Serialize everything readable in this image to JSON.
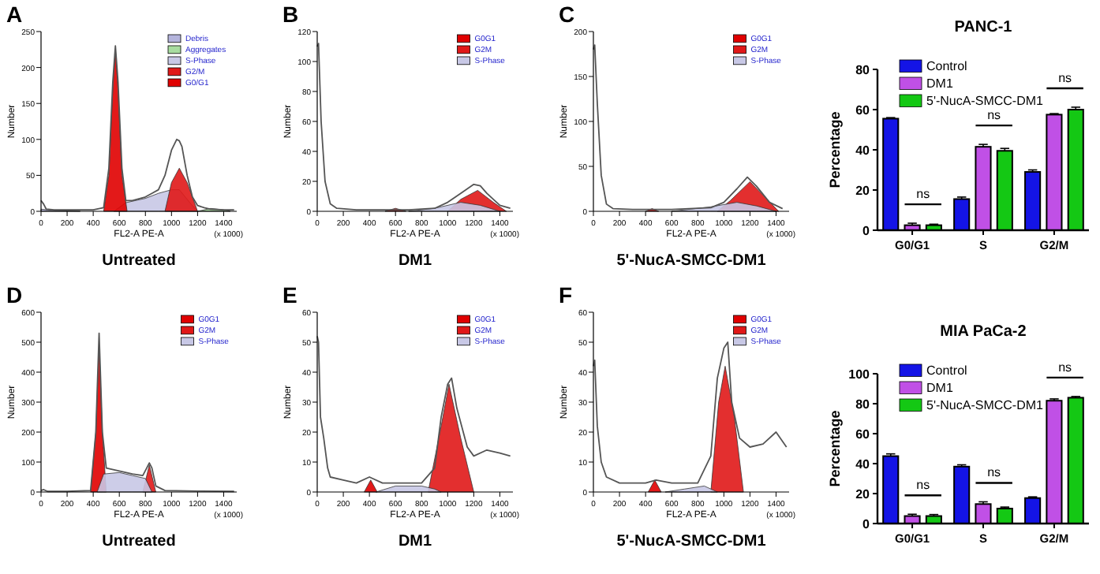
{
  "chart_data": [
    {
      "type": "area",
      "title": "A",
      "xlabel": "FL2-A PE-A",
      "ylabel": "Number",
      "xlim": [
        0,
        1500
      ],
      "xticks": [
        0,
        200,
        400,
        600,
        800,
        1000,
        1200,
        1400
      ],
      "ylim": [
        0,
        250
      ],
      "yticks": [
        0,
        50,
        100,
        150,
        200,
        250
      ],
      "legend": "top right",
      "annotations": [
        "(x 1000)",
        "Untreated"
      ],
      "series": [
        {
          "name": "Debris",
          "color": "#b4b4dc",
          "type": "area",
          "x": [
            0,
            50,
            100,
            300
          ],
          "values": [
            3,
            2,
            1,
            0
          ]
        },
        {
          "name": "Aggregates",
          "color": "#a8dca0",
          "type": "area",
          "x": [
            1200,
            1300,
            1400,
            1450
          ],
          "values": [
            0,
            4,
            2,
            0
          ]
        },
        {
          "name": "S-Phase",
          "color": "#c8c8e6",
          "type": "area",
          "x": [
            560,
            650,
            800,
            900,
            1000,
            1060,
            1150,
            1200
          ],
          "values": [
            0,
            12,
            18,
            25,
            30,
            30,
            10,
            0
          ]
        },
        {
          "name": "G2/M",
          "color": "#e01818",
          "type": "area",
          "x": [
            950,
            1000,
            1060,
            1120,
            1200
          ],
          "values": [
            0,
            40,
            60,
            40,
            0
          ]
        },
        {
          "name": "G0/G1",
          "color": "#e00000",
          "type": "area",
          "x": [
            480,
            520,
            550,
            570,
            590,
            620,
            660
          ],
          "values": [
            0,
            50,
            170,
            225,
            170,
            50,
            0
          ]
        },
        {
          "color": "#555555",
          "type": "line",
          "x": [
            0,
            20,
            40,
            100,
            200,
            300,
            400,
            480,
            520,
            550,
            570,
            590,
            620,
            650,
            700,
            800,
            850,
            900,
            950,
            1000,
            1040,
            1060,
            1080,
            1120,
            1160,
            1200,
            1250,
            1300,
            1400,
            1480
          ],
          "values": [
            15,
            10,
            3,
            2,
            2,
            2,
            2,
            5,
            60,
            180,
            230,
            180,
            60,
            15,
            15,
            20,
            25,
            30,
            50,
            85,
            100,
            98,
            90,
            50,
            20,
            8,
            5,
            3,
            2,
            2
          ]
        }
      ]
    },
    {
      "type": "area",
      "title": "B",
      "xlabel": "FL2-A PE-A",
      "ylabel": "Number",
      "xlim": [
        0,
        1500
      ],
      "xticks": [
        0,
        200,
        400,
        600,
        800,
        1000,
        1200,
        1400
      ],
      "ylim": [
        0,
        120
      ],
      "yticks": [
        0,
        20,
        40,
        60,
        80,
        100,
        120
      ],
      "legend": "top right",
      "annotations": [
        "(x 1000)",
        "DM1"
      ],
      "series": [
        {
          "name": "G0G1",
          "color": "#e00000",
          "type": "area",
          "x": [
            520,
            600,
            680
          ],
          "values": [
            0,
            2,
            0
          ]
        },
        {
          "name": "G2M",
          "color": "#e01818",
          "type": "area",
          "x": [
            1000,
            1100,
            1230,
            1350,
            1450
          ],
          "values": [
            0,
            8,
            14,
            6,
            0
          ]
        },
        {
          "name": "S-Phase",
          "color": "#c8c8e6",
          "type": "area",
          "x": [
            700,
            900,
            1100,
            1250,
            1400
          ],
          "values": [
            0,
            2,
            6,
            4,
            0
          ]
        },
        {
          "color": "#555555",
          "type": "line",
          "x": [
            0,
            10,
            30,
            60,
            100,
            150,
            300,
            500,
            700,
            900,
            1000,
            1100,
            1200,
            1250,
            1300,
            1400,
            1480
          ],
          "values": [
            110,
            112,
            60,
            20,
            5,
            2,
            1,
            1,
            1,
            2,
            6,
            12,
            18,
            17,
            12,
            4,
            2
          ]
        }
      ]
    },
    {
      "type": "area",
      "title": "C",
      "xlabel": "FL2-A PE-A",
      "ylabel": "Number",
      "xlim": [
        0,
        1500
      ],
      "xticks": [
        0,
        200,
        400,
        600,
        800,
        1000,
        1200,
        1400
      ],
      "ylim": [
        0,
        200
      ],
      "yticks": [
        0,
        50,
        100,
        150,
        200
      ],
      "legend": "top right",
      "annotations": [
        "(x 1000)",
        "5'-NucA-SMCC-DM1"
      ],
      "series": [
        {
          "name": "G0G1",
          "color": "#e00000",
          "type": "area",
          "x": [
            400,
            450,
            500
          ],
          "values": [
            0,
            3,
            0
          ]
        },
        {
          "name": "G2M",
          "color": "#e01818",
          "type": "area",
          "x": [
            950,
            1050,
            1200,
            1300,
            1420
          ],
          "values": [
            0,
            12,
            33,
            18,
            0
          ]
        },
        {
          "name": "S-Phase",
          "color": "#c8c8e6",
          "type": "area",
          "x": [
            600,
            900,
            1100,
            1250,
            1400
          ],
          "values": [
            0,
            5,
            10,
            6,
            0
          ]
        },
        {
          "color": "#555555",
          "type": "line",
          "x": [
            0,
            10,
            30,
            60,
            100,
            150,
            300,
            600,
            900,
            1000,
            1100,
            1180,
            1250,
            1350,
            1450
          ],
          "values": [
            180,
            185,
            120,
            40,
            8,
            3,
            2,
            2,
            4,
            10,
            25,
            38,
            28,
            10,
            3
          ]
        }
      ]
    },
    {
      "type": "area",
      "title": "D",
      "xlabel": "FL2-A PE-A",
      "ylabel": "Number",
      "xlim": [
        0,
        1500
      ],
      "xticks": [
        0,
        200,
        400,
        600,
        800,
        1000,
        1200,
        1400
      ],
      "ylim": [
        0,
        600
      ],
      "yticks": [
        0,
        100,
        200,
        300,
        400,
        500,
        600
      ],
      "legend": "top right",
      "annotations": [
        "(x 1000)",
        "Untreated"
      ],
      "series": [
        {
          "name": "G0G1",
          "color": "#e00000",
          "type": "area",
          "x": [
            380,
            420,
            445,
            470,
            500
          ],
          "values": [
            0,
            200,
            490,
            200,
            0
          ]
        },
        {
          "name": "G2M",
          "color": "#e01818",
          "type": "area",
          "x": [
            780,
            830,
            880
          ],
          "values": [
            0,
            90,
            0
          ]
        },
        {
          "name": "S-Phase",
          "color": "#c8c8e6",
          "type": "area",
          "x": [
            430,
            480,
            600,
            700,
            800,
            850
          ],
          "values": [
            0,
            60,
            65,
            55,
            45,
            0
          ]
        },
        {
          "color": "#555555",
          "type": "line",
          "x": [
            0,
            20,
            50,
            200,
            380,
            420,
            445,
            470,
            500,
            600,
            700,
            780,
            810,
            830,
            850,
            880,
            950,
            1200,
            1480
          ],
          "values": [
            5,
            8,
            2,
            2,
            5,
            200,
            530,
            200,
            80,
            70,
            60,
            55,
            80,
            97,
            80,
            20,
            5,
            3,
            2
          ]
        }
      ]
    },
    {
      "type": "area",
      "title": "E",
      "xlabel": "FL2-A PE-A",
      "ylabel": "Number",
      "xlim": [
        0,
        1500
      ],
      "xticks": [
        0,
        200,
        400,
        600,
        800,
        1000,
        1200,
        1400
      ],
      "ylim": [
        0,
        60
      ],
      "yticks": [
        0,
        10,
        20,
        30,
        40,
        50,
        60
      ],
      "legend": "top right",
      "annotations": [
        "(x 1000)",
        "DM1"
      ],
      "series": [
        {
          "name": "G0G1",
          "color": "#e00000",
          "type": "area",
          "x": [
            360,
            410,
            460
          ],
          "values": [
            0,
            4,
            0
          ]
        },
        {
          "name": "G2M",
          "color": "#e01818",
          "type": "area",
          "x": [
            850,
            950,
            1010,
            1100,
            1200
          ],
          "values": [
            0,
            22,
            36,
            18,
            0
          ]
        },
        {
          "name": "S-Phase",
          "color": "#c8c8e6",
          "type": "area",
          "x": [
            450,
            600,
            800,
            900,
            950
          ],
          "values": [
            0,
            2,
            2,
            1,
            0
          ]
        },
        {
          "color": "#555555",
          "type": "line",
          "x": [
            0,
            10,
            25,
            50,
            80,
            100,
            200,
            300,
            400,
            500,
            600,
            800,
            900,
            950,
            1000,
            1030,
            1070,
            1150,
            1200,
            1300,
            1400,
            1480
          ],
          "values": [
            52,
            50,
            25,
            18,
            8,
            5,
            4,
            3,
            5,
            3,
            3,
            3,
            8,
            25,
            36,
            38,
            28,
            15,
            12,
            14,
            13,
            12
          ]
        }
      ]
    },
    {
      "type": "area",
      "title": "F",
      "xlabel": "FL2-A PE-A",
      "ylabel": "Number",
      "xlim": [
        0,
        1500
      ],
      "xticks": [
        0,
        200,
        400,
        600,
        800,
        1000,
        1200,
        1400
      ],
      "ylim": [
        0,
        60
      ],
      "yticks": [
        0,
        10,
        20,
        30,
        40,
        50,
        60
      ],
      "legend": "top right",
      "annotations": [
        "(x 1000)",
        "5'-NucA-SMCC-DM1"
      ],
      "series": [
        {
          "name": "G0G1",
          "color": "#e00000",
          "type": "area",
          "x": [
            420,
            470,
            520
          ],
          "values": [
            0,
            4,
            0
          ]
        },
        {
          "name": "G2M",
          "color": "#e01818",
          "type": "area",
          "x": [
            900,
            960,
            1010,
            1080,
            1150
          ],
          "values": [
            0,
            30,
            42,
            25,
            0
          ]
        },
        {
          "name": "S-Phase",
          "color": "#c8c8e6",
          "type": "area",
          "x": [
            550,
            700,
            850,
            950
          ],
          "values": [
            0,
            1,
            2,
            0
          ]
        },
        {
          "color": "#555555",
          "type": "line",
          "x": [
            0,
            10,
            30,
            60,
            100,
            200,
            400,
            480,
            600,
            800,
            900,
            950,
            1000,
            1030,
            1060,
            1120,
            1200,
            1300,
            1400,
            1480
          ],
          "values": [
            42,
            44,
            22,
            10,
            5,
            3,
            3,
            4,
            3,
            3,
            12,
            38,
            48,
            50,
            30,
            18,
            15,
            16,
            20,
            15
          ]
        }
      ]
    },
    {
      "type": "bar",
      "title": "PANC-1",
      "ylabel": "Percentage",
      "categories": [
        "G0/G1",
        "S",
        "G2/M"
      ],
      "ylim": [
        0,
        80
      ],
      "yticks": [
        0,
        20,
        40,
        60,
        80
      ],
      "legend": "top left",
      "annotations": [
        "ns",
        "ns",
        "ns"
      ],
      "series": [
        {
          "name": "Control",
          "color": "#1414e6",
          "values": [
            55.5,
            15.5,
            29
          ],
          "errors": [
            0.5,
            1,
            1
          ]
        },
        {
          "name": "DM1",
          "color": "#c050e6",
          "values": [
            2.5,
            41.5,
            57.5
          ],
          "errors": [
            1,
            1.2,
            0.5
          ]
        },
        {
          "name": "5'-NucA-SMCC-DM1",
          "color": "#14c814",
          "values": [
            2.5,
            39.5,
            60
          ],
          "errors": [
            0.5,
            1.2,
            1.2
          ]
        }
      ]
    },
    {
      "type": "bar",
      "title": "MIA PaCa-2",
      "ylabel": "Percentage",
      "categories": [
        "G0/G1",
        "S",
        "G2/M"
      ],
      "ylim": [
        0,
        100
      ],
      "yticks": [
        0,
        20,
        40,
        60,
        80,
        100
      ],
      "legend": "top left",
      "annotations": [
        "ns",
        "ns",
        "ns"
      ],
      "series": [
        {
          "name": "Control",
          "color": "#1414e6",
          "values": [
            45,
            38,
            17
          ],
          "errors": [
            1.5,
            1.2,
            0.8
          ]
        },
        {
          "name": "DM1",
          "color": "#c050e6",
          "values": [
            5,
            13,
            82
          ],
          "errors": [
            1.2,
            1.5,
            1.2
          ]
        },
        {
          "name": "5'-NucA-SMCC-DM1",
          "color": "#14c814",
          "values": [
            5,
            10,
            84
          ],
          "errors": [
            1,
            1,
            0.8
          ]
        }
      ]
    }
  ]
}
